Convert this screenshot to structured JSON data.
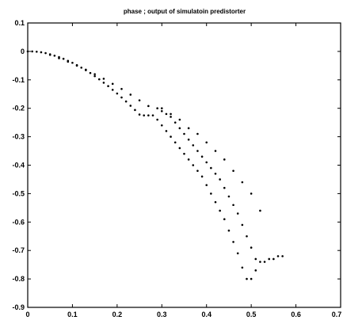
{
  "chart_data": {
    "type": "scatter",
    "title": "phase ; output of simulatoin predistorter",
    "xlim": [
      0,
      0.7
    ],
    "ylim": [
      -0.9,
      0.1
    ],
    "x_ticks": [
      0,
      0.1,
      0.2,
      0.3,
      0.4,
      0.5,
      0.6,
      0.7
    ],
    "x_tick_labels": [
      "0",
      "0.1",
      "0.2",
      "0.3",
      "0.4",
      "0.5",
      "0.6",
      "0.7"
    ],
    "y_ticks": [
      0.1,
      0,
      -0.1,
      -0.2,
      -0.3,
      -0.4,
      -0.5,
      -0.6,
      -0.7,
      -0.8,
      -0.9
    ],
    "y_tick_labels": [
      "0.1",
      "0",
      "-0.1",
      "-0.2",
      "-0.3",
      "-0.4",
      "-0.5",
      "-0.6",
      "-0.7",
      "-0.8",
      "-0.9"
    ],
    "grid": false,
    "marker": ".",
    "series": [
      {
        "color": "#000000",
        "x": [
          0,
          0.01,
          0.02,
          0.03,
          0.04,
          0.05,
          0.06,
          0.07,
          0.08,
          0.09,
          0.1,
          0.11,
          0.12,
          0.13,
          0.14,
          0.15,
          0.16,
          0.17,
          0.18,
          0.19,
          0.2,
          0.21,
          0.22,
          0.23,
          0.24,
          0.25,
          0.26,
          0.27,
          0.28,
          0.29,
          0.3,
          0.31,
          0.32,
          0.33,
          0.34,
          0.35,
          0.36,
          0.37,
          0.38,
          0.39,
          0.4,
          0.41,
          0.42,
          0.43,
          0.44,
          0.45,
          0.46,
          0.47,
          0.48,
          0.49,
          0.5,
          0.51,
          0.52,
          0.53,
          0.54,
          0.55,
          0.56,
          0.57
        ],
        "y": [
          0,
          0,
          -0.001,
          -0.003,
          -0.006,
          -0.01,
          -0.015,
          -0.02,
          -0.026,
          -0.033,
          -0.04,
          -0.048,
          -0.057,
          -0.066,
          -0.076,
          -0.087,
          -0.098,
          -0.11,
          -0.122,
          -0.135,
          -0.148,
          -0.162,
          -0.176,
          -0.191,
          -0.206,
          -0.222,
          -0.225,
          -0.225,
          -0.225,
          -0.24,
          -0.26,
          -0.28,
          -0.3,
          -0.32,
          -0.34,
          -0.36,
          -0.38,
          -0.4,
          -0.42,
          -0.44,
          -0.47,
          -0.5,
          -0.53,
          -0.56,
          -0.59,
          -0.63,
          -0.67,
          -0.71,
          -0.76,
          -0.8,
          -0.8,
          -0.77,
          -0.74,
          -0.74,
          -0.73,
          -0.73,
          -0.72,
          -0.72
        ]
      },
      {
        "color": "#000000",
        "x": [
          0.05,
          0.07,
          0.09,
          0.11,
          0.13,
          0.15,
          0.17,
          0.19,
          0.21,
          0.23,
          0.25,
          0.27,
          0.29,
          0.3,
          0.31,
          0.32,
          0.33,
          0.34,
          0.35,
          0.36,
          0.37,
          0.38,
          0.39,
          0.4,
          0.41,
          0.42,
          0.43,
          0.44,
          0.45,
          0.46,
          0.47,
          0.48,
          0.49,
          0.5,
          0.51
        ],
        "y": [
          -0.012,
          -0.024,
          -0.036,
          -0.05,
          -0.064,
          -0.08,
          -0.096,
          -0.114,
          -0.132,
          -0.152,
          -0.172,
          -0.192,
          -0.2,
          -0.21,
          -0.22,
          -0.23,
          -0.25,
          -0.27,
          -0.29,
          -0.31,
          -0.33,
          -0.35,
          -0.37,
          -0.39,
          -0.41,
          -0.43,
          -0.45,
          -0.48,
          -0.51,
          -0.54,
          -0.57,
          -0.61,
          -0.65,
          -0.69,
          -0.73
        ]
      },
      {
        "color": "#000000",
        "x": [
          0.3,
          0.32,
          0.34,
          0.36,
          0.38,
          0.4,
          0.42,
          0.44,
          0.46,
          0.48,
          0.5,
          0.52
        ],
        "y": [
          -0.2,
          -0.22,
          -0.24,
          -0.27,
          -0.29,
          -0.32,
          -0.35,
          -0.38,
          -0.42,
          -0.46,
          -0.5,
          -0.56
        ]
      }
    ]
  }
}
